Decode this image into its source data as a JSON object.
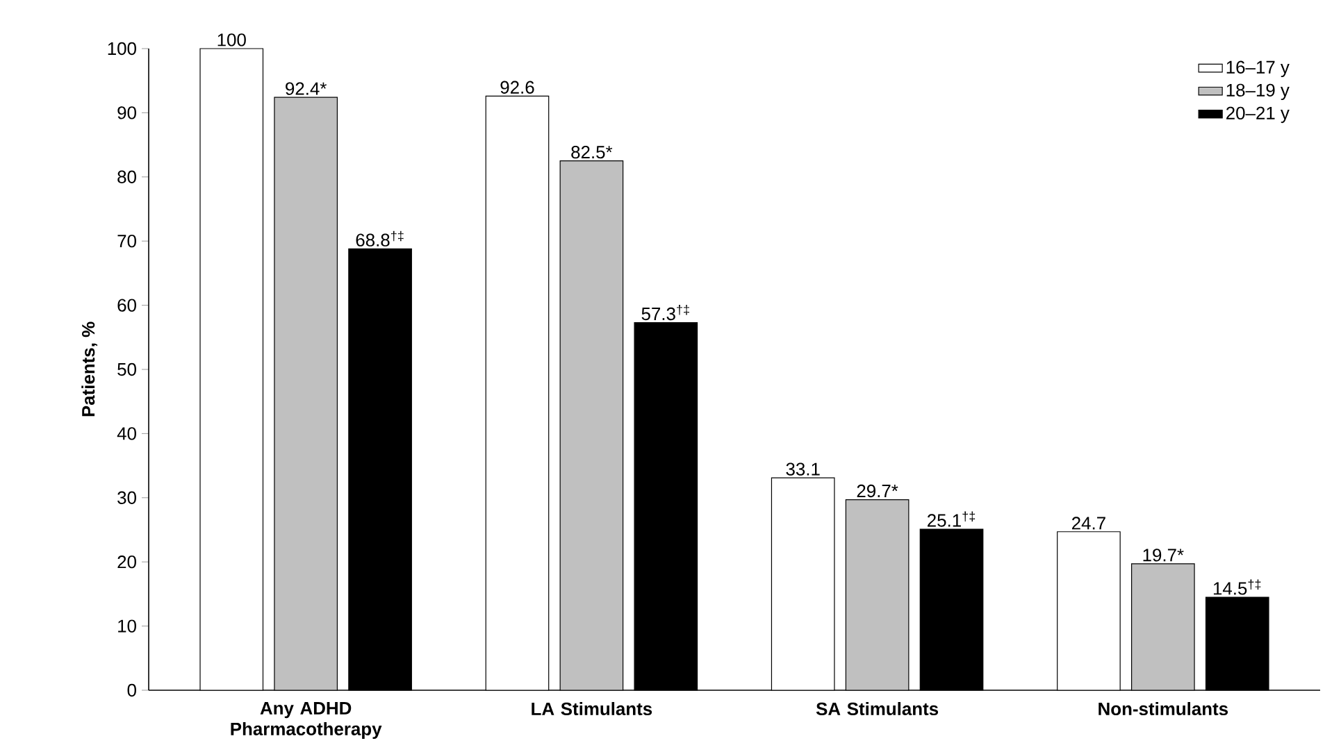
{
  "chart_data": {
    "type": "bar",
    "ylabel": "Patients, %",
    "categories": [
      "Any ADHD Pharmacotherapy",
      "LA Stimulants",
      "SA Stimulants",
      "Non-stimulants"
    ],
    "series": [
      {
        "name": "16–17 y",
        "color": "#ffffff",
        "values": [
          100,
          92.6,
          33.1,
          24.7
        ],
        "value_labels": [
          "100",
          "92.6",
          "33.1",
          "24.7"
        ]
      },
      {
        "name": "18–19 y",
        "color": "#c0c0c0",
        "values": [
          92.4,
          82.5,
          29.7,
          19.7
        ],
        "value_labels": [
          "92.4*",
          "82.5*",
          "29.7*",
          "19.7*"
        ]
      },
      {
        "name": "20–21 y",
        "color": "#000000",
        "values": [
          68.8,
          57.3,
          25.1,
          14.5
        ],
        "value_labels": [
          "68.8$^{†‡}$",
          "57.3$^{†‡}$",
          "25.1$^{†‡}$",
          "14.5$^{†‡}$"
        ]
      }
    ],
    "ylim": [
      0,
      100
    ],
    "yticks": [
      0,
      10,
      20,
      30,
      40,
      50,
      60,
      70,
      80,
      90,
      100
    ],
    "grid": false,
    "legend": "top right"
  }
}
